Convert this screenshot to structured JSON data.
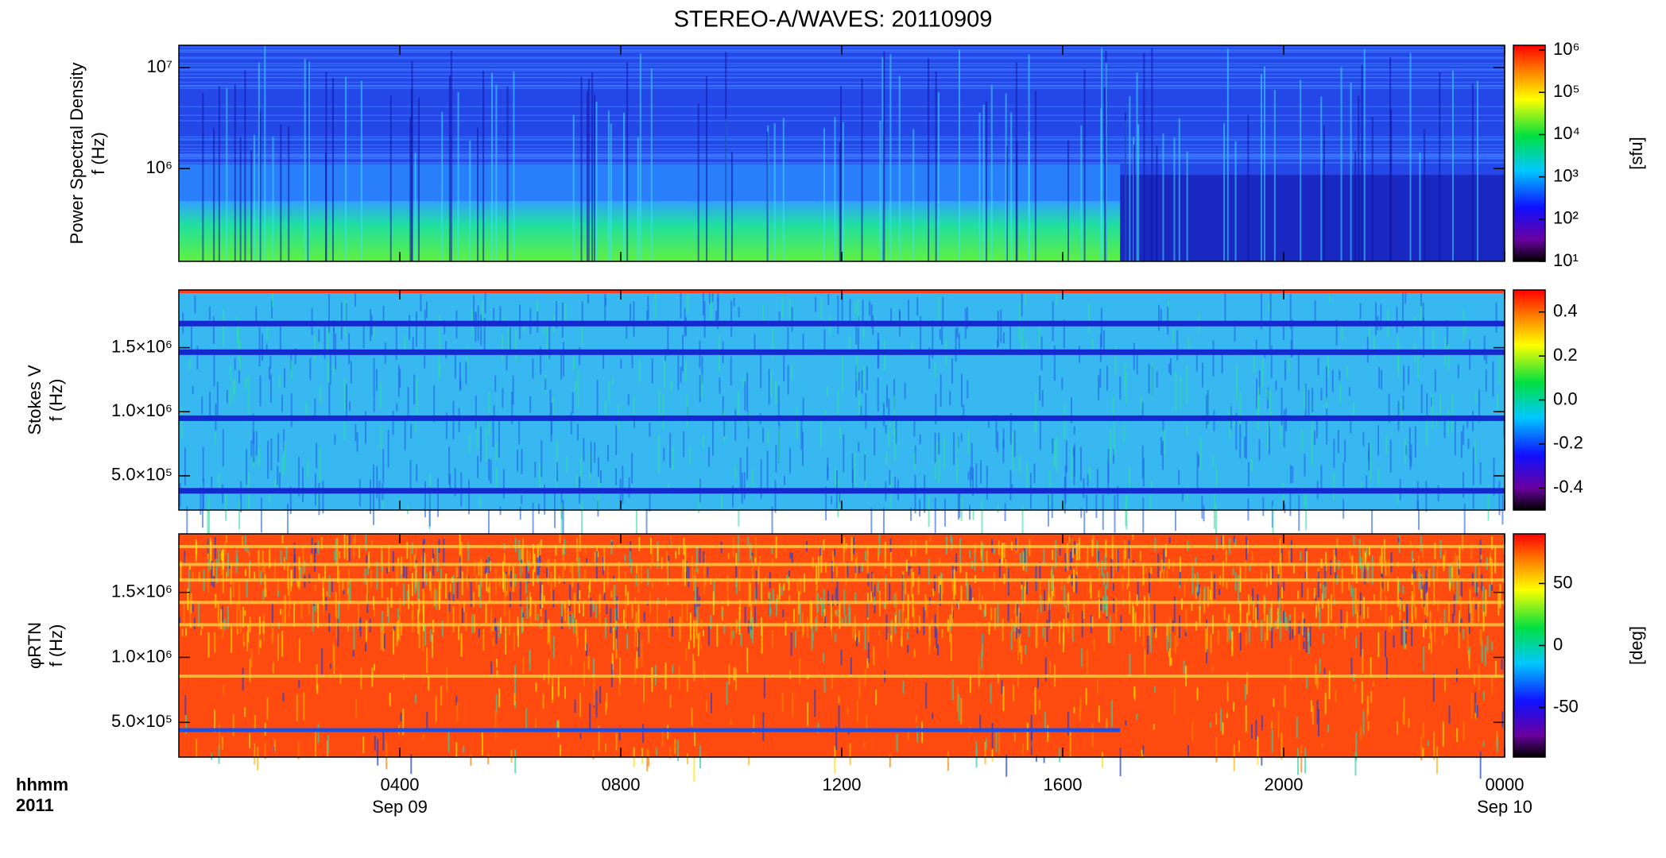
{
  "title": "STEREO-A/WAVES: 20110909",
  "x_axis": {
    "label": "hhmm",
    "year": "2011",
    "xlim": [
      0,
      24
    ],
    "xticks": [
      {
        "value": 4,
        "label": "0400"
      },
      {
        "value": 8,
        "label": "0800"
      },
      {
        "value": 12,
        "label": "1200"
      },
      {
        "value": 16,
        "label": "1600"
      },
      {
        "value": 20,
        "label": "2000"
      },
      {
        "value": 24,
        "label": "0000"
      }
    ],
    "date_labels": [
      {
        "value": 4,
        "label": "Sep 09"
      },
      {
        "value": 24,
        "label": "Sep 10"
      }
    ]
  },
  "chart_data": [
    {
      "type": "heatmap",
      "ylabel": "Power Spectral Density",
      "ylabel_unit": "f (Hz)",
      "ylog": true,
      "ylim": [
        120000,
        16700000
      ],
      "yticks": [
        {
          "value": 10000000,
          "label": "10⁷"
        },
        {
          "value": 1000000,
          "label": "10⁶"
        }
      ],
      "clog": true,
      "clim": [
        10,
        1300000
      ],
      "cticks": [
        {
          "value": 1000000,
          "label": "10⁶"
        },
        {
          "value": 100000,
          "label": "10⁵"
        },
        {
          "value": 10000,
          "label": "10⁴"
        },
        {
          "value": 1000,
          "label": "10³"
        },
        {
          "value": 100,
          "label": "10²"
        },
        {
          "value": 10,
          "label": "10¹"
        }
      ],
      "colorbar_label": "[sfu]"
    },
    {
      "type": "heatmap",
      "ylabel": "Stokes V",
      "ylabel_unit": "f (Hz)",
      "ylog": false,
      "ylim": [
        233000,
        1950000
      ],
      "yticks": [
        {
          "value": 1500000,
          "label": "1.5×10⁶"
        },
        {
          "value": 1000000,
          "label": "1.0×10⁶"
        },
        {
          "value": 500000,
          "label": "5.0×10⁵"
        }
      ],
      "clog": false,
      "clim": [
        -0.5,
        0.5
      ],
      "cticks": [
        {
          "value": 0.4,
          "label": "0.4"
        },
        {
          "value": 0.2,
          "label": "0.2"
        },
        {
          "value": 0.0,
          "label": "0.0"
        },
        {
          "value": -0.2,
          "label": "-0.2"
        },
        {
          "value": -0.4,
          "label": "-0.4"
        }
      ]
    },
    {
      "type": "heatmap",
      "ylabel": "φRTN",
      "ylabel_unit": "f (Hz)",
      "ylog": false,
      "ylim": [
        233000,
        1950000
      ],
      "yticks": [
        {
          "value": 1500000,
          "label": "1.5×10⁶"
        },
        {
          "value": 1000000,
          "label": "1.0×10⁶"
        },
        {
          "value": 500000,
          "label": "5.0×10⁵"
        }
      ],
      "clog": false,
      "clim": [
        -90,
        90
      ],
      "cticks": [
        50,
        0,
        -50
      ],
      "colorbar_label": "[deg]"
    }
  ]
}
